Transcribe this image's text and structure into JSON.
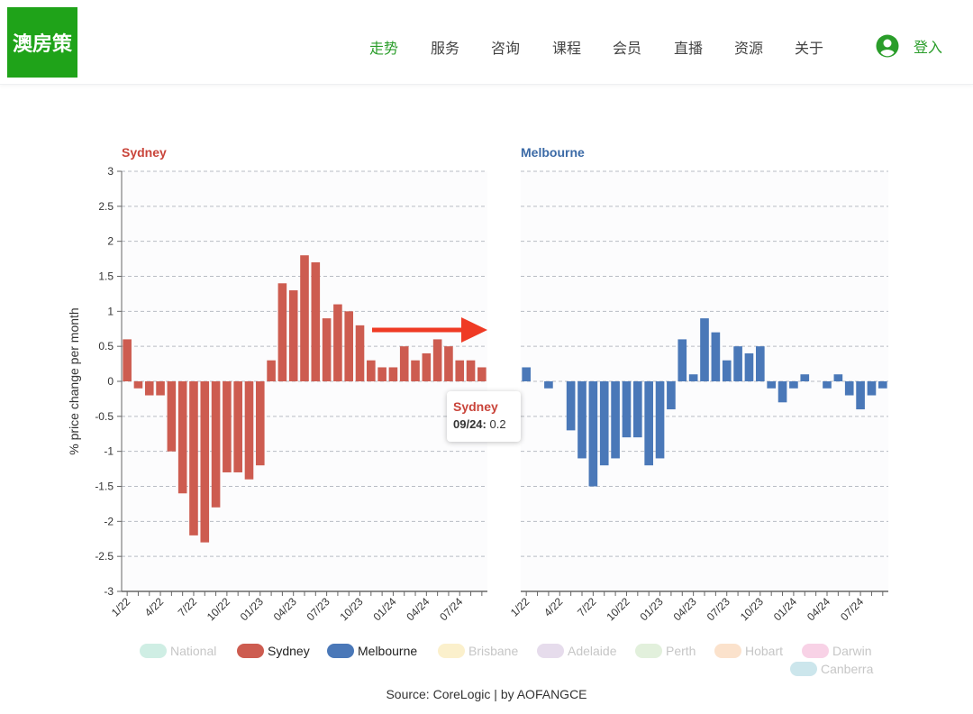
{
  "header": {
    "logo_text": "澳房策",
    "nav": [
      {
        "label": "走势",
        "active": true
      },
      {
        "label": "服务",
        "active": false
      },
      {
        "label": "咨询",
        "active": false
      },
      {
        "label": "课程",
        "active": false
      },
      {
        "label": "会员",
        "active": false
      },
      {
        "label": "直播",
        "active": false
      },
      {
        "label": "资源",
        "active": false
      },
      {
        "label": "关于",
        "active": false
      }
    ],
    "login_label": "登入"
  },
  "colors": {
    "brand_green": "#1fa319",
    "nav_active": "#2a9d2a",
    "sydney": "#cd5c50",
    "melbourne": "#4a78b8",
    "arrow": "#ef3a24"
  },
  "tooltip": {
    "series": "Sydney",
    "label": "09/24:",
    "value": "0.2"
  },
  "source": "Source: CoreLogic | by AOFANGCE",
  "legend": [
    {
      "name": "National",
      "color": "#cfeee4",
      "active": false
    },
    {
      "name": "Sydney",
      "color": "#cd5c50",
      "active": true
    },
    {
      "name": "Melbourne",
      "color": "#4a78b8",
      "active": true
    },
    {
      "name": "Brisbane",
      "color": "#fbf0cc",
      "active": false
    },
    {
      "name": "Adelaide",
      "color": "#e6dcec",
      "active": false
    },
    {
      "name": "Perth",
      "color": "#e2f0dc",
      "active": false
    },
    {
      "name": "Hobart",
      "color": "#fbe2cc",
      "active": false
    },
    {
      "name": "Darwin",
      "color": "#f8d2e6",
      "active": false
    },
    {
      "name": "Canberra",
      "color": "#cce6ec",
      "active": false
    }
  ],
  "chart_data": [
    {
      "type": "bar",
      "title": "Sydney",
      "ylabel": "% price change per month",
      "ylim": [
        -3,
        3
      ],
      "yticks": [
        "3",
        "2.5",
        "2",
        "1.5",
        "1",
        "0.5",
        "0",
        "-0.5",
        "-1",
        "-1.5",
        "-2",
        "-2.5",
        "-3"
      ],
      "xtick_labels": [
        "1/22",
        "4/22",
        "7/22",
        "10/22",
        "01/23",
        "04/23",
        "07/23",
        "10/23",
        "01/24",
        "04/24",
        "07/24"
      ],
      "grid": true,
      "values": [
        0.6,
        -0.1,
        -0.2,
        -0.2,
        -1.0,
        -1.6,
        -2.2,
        -2.3,
        -1.8,
        -1.3,
        -1.3,
        -1.4,
        -1.2,
        0.3,
        1.4,
        1.3,
        1.8,
        1.7,
        0.9,
        1.1,
        1.0,
        0.8,
        0.3,
        0.2,
        0.2,
        0.5,
        0.3,
        0.4,
        0.6,
        0.5,
        0.3,
        0.3,
        0.2
      ]
    },
    {
      "type": "bar",
      "title": "Melbourne",
      "ylim": [
        -3,
        3
      ],
      "xtick_labels": [
        "1/22",
        "4/22",
        "7/22",
        "10/22",
        "01/23",
        "04/23",
        "07/23",
        "10/23",
        "01/24",
        "04/24",
        "07/24"
      ],
      "grid": true,
      "values": [
        0.2,
        0.0,
        -0.1,
        0.0,
        -0.7,
        -1.1,
        -1.5,
        -1.2,
        -1.1,
        -0.8,
        -0.8,
        -1.2,
        -1.1,
        -0.4,
        0.6,
        0.1,
        0.9,
        0.7,
        0.3,
        0.5,
        0.4,
        0.5,
        -0.1,
        -0.3,
        -0.1,
        0.1,
        0.0,
        -0.1,
        0.1,
        -0.2,
        -0.4,
        -0.2,
        -0.1
      ]
    }
  ]
}
